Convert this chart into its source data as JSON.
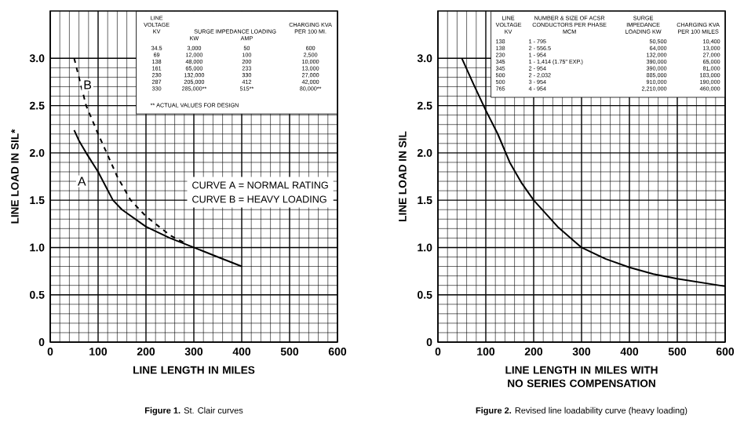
{
  "chart_data": [
    {
      "type": "line",
      "xlabel": "LINE LENGTH IN MILES",
      "ylabel": "LINE LOAD IN SIL*",
      "xlim": [
        0,
        600
      ],
      "xticks": [
        0,
        100,
        200,
        300,
        400,
        500,
        600
      ],
      "ylim": [
        0,
        3.5
      ],
      "yticks": [
        0,
        0.5,
        {
          "value": 1,
          "label": "1.0"
        },
        1.5,
        {
          "value": 2,
          "label": "2.0"
        },
        2.5,
        {
          "value": 3,
          "label": "3.0"
        }
      ],
      "grid": true,
      "series": [
        {
          "color": "#000000",
          "line_style": "solid",
          "x": [
            50,
            60,
            75,
            100,
            131,
            150,
            200,
            250,
            300,
            350,
            400
          ],
          "values": [
            2.24,
            2.13,
            2.0,
            1.8,
            1.5,
            1.4,
            1.22,
            1.1,
            1.0,
            0.9,
            0.8
          ]
        },
        {
          "color": "#000000",
          "line_style": "dashed",
          "x": [
            50,
            60,
            75,
            100,
            118,
            140,
            168,
            200,
            250,
            280
          ],
          "values": [
            3.0,
            2.8,
            2.5,
            2.2,
            2.0,
            1.75,
            1.5,
            1.33,
            1.13,
            1.05
          ]
        }
      ],
      "annotations": [
        "**Figure 1.** St. Clair curves",
        "LINE VOLTAGE KV",
        "SURGE IMPEDANCE LOADING",
        "KW",
        "AMP",
        "CHARGING KVA PER 100 MI.",
        "34.5",
        "3,000",
        "50",
        "600",
        "69",
        "12,000",
        "100",
        "2,500",
        "138",
        "48,000",
        "200",
        "10,000",
        "161",
        "65,000",
        "233",
        "13,000",
        "230",
        "132,000",
        "330",
        "27,000",
        "287",
        "205,000",
        "412",
        "42,000",
        "330",
        "285,000**",
        "515**",
        "80,000**",
        "** ACTUAL VALUES FOR DESIGN",
        "CURVE A = NORMAL RATING",
        "CURVE B = HEAVY LOADING",
        {
          "text": "A",
          "x": 66,
          "y": 1.7
        },
        {
          "text": "B",
          "x": 78,
          "y": 2.72
        }
      ]
    },
    {
      "type": "line",
      "xlabel": "LINE LENGTH IN MILES WITH NO SERIES COMPENSATION",
      "ylabel": "LINE LOAD IN SIL",
      "xlim": [
        0,
        600
      ],
      "xticks": [
        0,
        100,
        200,
        300,
        400,
        500,
        600
      ],
      "ylim": [
        0,
        3.5
      ],
      "yticks": [
        0,
        0.5,
        {
          "value": 1,
          "label": "1.0"
        },
        1.5,
        {
          "value": 2,
          "label": "2.0"
        },
        2.5,
        {
          "value": 3,
          "label": "3.0"
        }
      ],
      "grid": true,
      "series": [
        {
          "color": "#000000",
          "line_style": "solid",
          "x": [
            50,
            75,
            100,
            125,
            150,
            175,
            200,
            250,
            300,
            350,
            400,
            450,
            500,
            550,
            600
          ],
          "values": [
            3.0,
            2.72,
            2.45,
            2.2,
            1.9,
            1.68,
            1.5,
            1.22,
            1.0,
            0.88,
            0.79,
            0.72,
            0.67,
            0.63,
            0.59
          ]
        }
      ],
      "annotations": [
        "**Figure 2.** Revised line loadability curve (heavy loading)",
        "LINE VOLTAGE KV",
        "NUMBER & SIZE OF ACSR CONDUCTORS PER PHASE MCM",
        "SURGE IMPEDANCE LOADING KW",
        "CHARGING KVA PER 100 MILES",
        "138",
        "1 - 795",
        "50,500",
        "10,400",
        "138",
        "2 - 556.5",
        "64,000",
        "13,000",
        "230",
        "1 - 954",
        "132,000",
        "27,000",
        "345",
        "1 - 1,414 (1.75\" EXP.)",
        "390,000",
        "65,000",
        "345",
        "2 - 954",
        "390,000",
        "81,000",
        "500",
        "2 - 2,032",
        "885,000",
        "183,000",
        "500",
        "3 - 954",
        "910,000",
        "190,000",
        "765",
        "4 - 954",
        "2,210,000",
        "460,000"
      ]
    }
  ]
}
